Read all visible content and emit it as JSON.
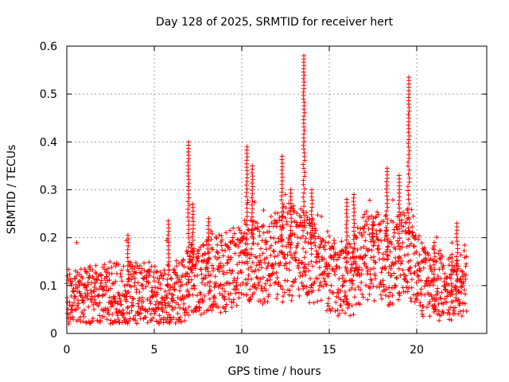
{
  "chart_data": {
    "type": "scatter",
    "title": "Day 128 of 2025, SRMTID for receiver hert",
    "xlabel": "GPS time / hours",
    "ylabel": "SRMTID / TECUs",
    "xlim": [
      0,
      24
    ],
    "ylim": [
      0,
      0.6
    ],
    "xticks": [
      "0",
      "5",
      "10",
      "15",
      "20"
    ],
    "yticks": [
      "0",
      "0.1",
      "0.2",
      "0.3",
      "0.4",
      "0.5",
      "0.6"
    ],
    "grid": true,
    "marker": "plus",
    "color": "#ff0000",
    "baseline": [
      [
        0,
        0.075
      ],
      [
        2,
        0.075
      ],
      [
        3.3,
        0.085
      ],
      [
        4,
        0.09
      ],
      [
        5,
        0.075
      ],
      [
        5.5,
        0.07
      ],
      [
        6.5,
        0.085
      ],
      [
        7,
        0.11
      ],
      [
        8,
        0.12
      ],
      [
        9,
        0.13
      ],
      [
        10,
        0.14
      ],
      [
        10.5,
        0.15
      ],
      [
        11,
        0.14
      ],
      [
        11.5,
        0.15
      ],
      [
        12,
        0.16
      ],
      [
        12.5,
        0.17
      ],
      [
        13,
        0.17
      ],
      [
        13.5,
        0.16
      ],
      [
        14,
        0.15
      ],
      [
        14.5,
        0.14
      ],
      [
        15,
        0.12
      ],
      [
        16,
        0.11
      ],
      [
        17,
        0.16
      ],
      [
        18,
        0.16
      ],
      [
        18.5,
        0.15
      ],
      [
        19,
        0.16
      ],
      [
        19.5,
        0.17
      ],
      [
        20,
        0.12
      ],
      [
        21,
        0.11
      ],
      [
        22,
        0.09
      ],
      [
        22.5,
        0.1
      ],
      [
        23,
        0.11
      ]
    ],
    "peaks": [
      {
        "x": 3.5,
        "y": 0.205
      },
      {
        "x": 5.8,
        "y": 0.235
      },
      {
        "x": 6.95,
        "y": 0.4
      },
      {
        "x": 7.2,
        "y": 0.27
      },
      {
        "x": 8.1,
        "y": 0.24
      },
      {
        "x": 10.3,
        "y": 0.39
      },
      {
        "x": 10.6,
        "y": 0.35
      },
      {
        "x": 12.3,
        "y": 0.37
      },
      {
        "x": 12.8,
        "y": 0.3
      },
      {
        "x": 13.55,
        "y": 0.58
      },
      {
        "x": 14.0,
        "y": 0.3
      },
      {
        "x": 16.0,
        "y": 0.28
      },
      {
        "x": 16.4,
        "y": 0.29
      },
      {
        "x": 17.5,
        "y": 0.24
      },
      {
        "x": 18.3,
        "y": 0.345
      },
      {
        "x": 19.0,
        "y": 0.33
      },
      {
        "x": 19.55,
        "y": 0.535
      },
      {
        "x": 21.0,
        "y": 0.19
      },
      {
        "x": 22.0,
        "y": 0.165
      },
      {
        "x": 22.3,
        "y": 0.23
      }
    ]
  }
}
